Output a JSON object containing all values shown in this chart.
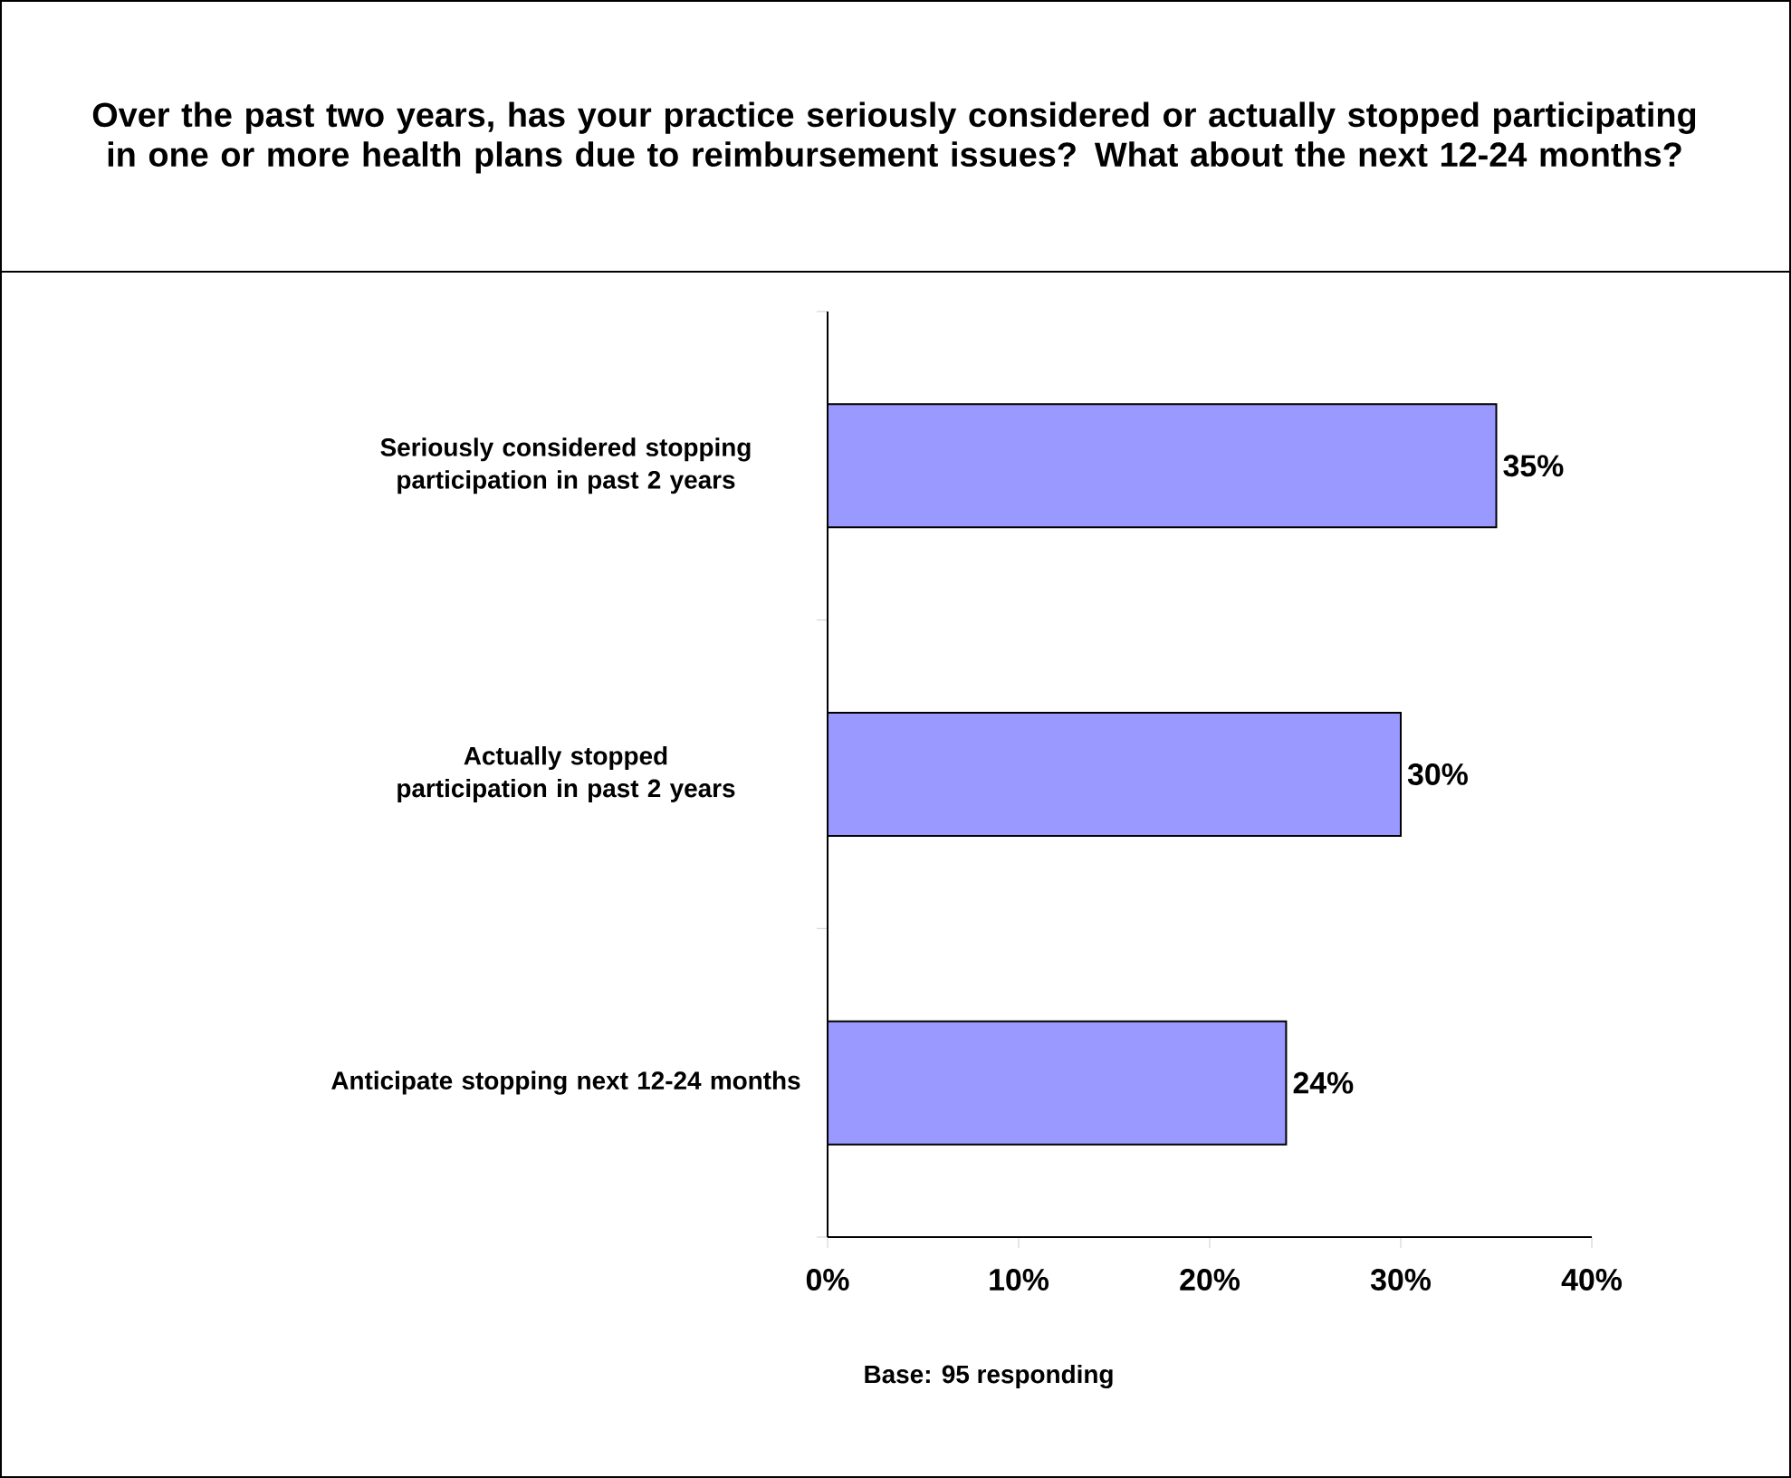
{
  "chart_data": {
    "type": "bar",
    "orientation": "horizontal",
    "title": "Over the past two years, has your practice seriously considered or actually stopped participating in one or more health plans due to reimbursement issues? What about the next 12-24 months?",
    "categories": [
      "Seriously considered stopping participation in past 2 years",
      "Actually stopped participation in past 2 years",
      "Anticipate stopping next 12-24 months"
    ],
    "values": [
      35,
      30,
      24
    ],
    "value_labels": [
      "35%",
      "30%",
      "24%"
    ],
    "color": "#9999ff",
    "xlim": [
      0,
      40
    ],
    "xticks": [
      {
        "value": 0,
        "label": "0%"
      },
      {
        "value": 10,
        "label": "10%"
      },
      {
        "value": 20,
        "label": "20%"
      },
      {
        "value": 30,
        "label": "30%"
      },
      {
        "value": 40,
        "label": "40%"
      }
    ],
    "annotations": [
      "Base: 95 responding"
    ]
  }
}
